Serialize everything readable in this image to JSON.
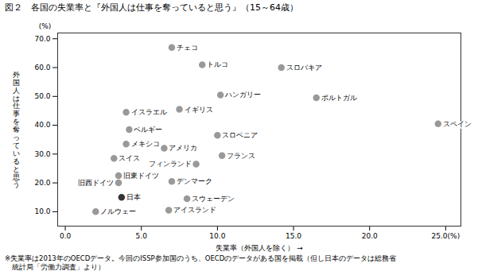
{
  "chart_data": {
    "type": "scatter",
    "title": "図２　各国の失業率と『外国人は仕事を奪っていると思う』（15～64歳）",
    "xlabel": "失業率（外国人を除く）",
    "ylabel": "外\n国\n人\nは\n仕\n事\nを\n奪\nっ\nて\nい\nる\nと\n思\nう",
    "ylabel_top": "(%)",
    "footnote": "※失業率は2013年のOECDデータ。今回のISSP参加国のうち、OECDのデータがある国を掲載（但し日本のデータは総務省\n　統計局「労働力調査」より）",
    "xlim": [
      -0.5,
      26
    ],
    "ylim": [
      5,
      72
    ],
    "xticks": [
      {
        "value": 0,
        "label": "0.0"
      },
      {
        "value": 5,
        "label": "5.0"
      },
      {
        "value": 10,
        "label": "10.0"
      },
      {
        "value": 15,
        "label": "15.0"
      },
      {
        "value": 20,
        "label": "20.0"
      },
      {
        "value": 25,
        "label": "25.0(%)"
      }
    ],
    "yticks": [
      {
        "value": 10,
        "label": "10.0"
      },
      {
        "value": 20,
        "label": "20.0"
      },
      {
        "value": 30,
        "label": "30.0"
      },
      {
        "value": 40,
        "label": "40.0"
      },
      {
        "value": 50,
        "label": "50.0"
      },
      {
        "value": 60,
        "label": "60.0"
      },
      {
        "value": 70,
        "label": "70.0"
      }
    ],
    "grid": false,
    "point_labels": [
      "チェコ",
      "トルコ",
      "スロバキア",
      "ハンガリー",
      "ポルトガル",
      "イスラエル",
      "イギリス",
      "スペイン",
      "ベルギー",
      "スロベニア",
      "メキシコ",
      "アメリカ",
      "フランス",
      "スイス",
      "フィンランド",
      "旧東ドイツ",
      "旧西ドイツ",
      "デンマーク",
      "日本",
      "スウェーデン",
      "ノルウェー",
      "アイスランド"
    ],
    "x": [
      7.0,
      9.0,
      14.2,
      10.2,
      16.5,
      4.0,
      7.5,
      24.5,
      4.2,
      10.0,
      4.0,
      6.5,
      10.3,
      3.2,
      8.6,
      3.5,
      3.5,
      7.0,
      3.7,
      8.0,
      2.0,
      6.8
    ],
    "values": [
      67.0,
      61.0,
      60.0,
      50.5,
      49.5,
      44.5,
      45.5,
      40.5,
      38.5,
      36.5,
      33.5,
      32.0,
      29.5,
      28.5,
      26.5,
      22.5,
      20.0,
      20.5,
      15.0,
      14.5,
      10.0,
      10.5
    ],
    "colors": [
      "#999999",
      "#999999",
      "#999999",
      "#999999",
      "#999999",
      "#999999",
      "#999999",
      "#999999",
      "#999999",
      "#999999",
      "#999999",
      "#999999",
      "#999999",
      "#999999",
      "#999999",
      "#999999",
      "#999999",
      "#999999",
      "#333333",
      "#999999",
      "#999999",
      "#999999"
    ]
  }
}
